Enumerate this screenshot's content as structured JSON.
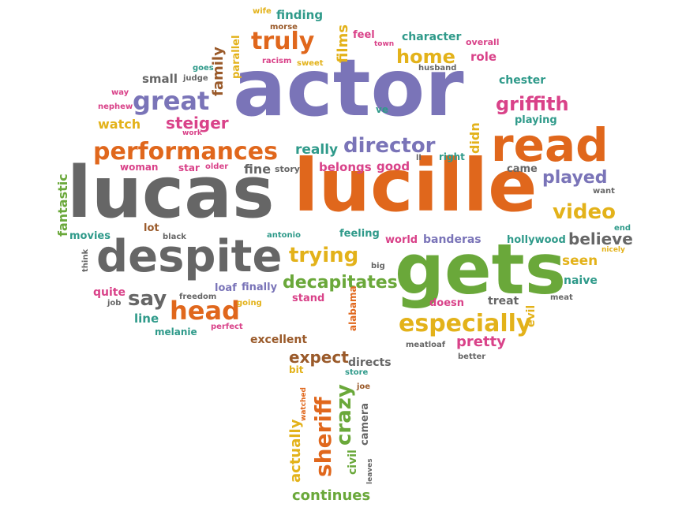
{
  "colors": {
    "purple": "#7a74b8",
    "gray": "#666666",
    "orange": "#e0671c",
    "yellow": "#e3b21a",
    "green": "#6aa83a",
    "pink": "#d94289",
    "teal": "#2f9a8a",
    "brown": "#9a5a2a"
  },
  "words": [
    {
      "text": "actor",
      "color": "purple"
    },
    {
      "text": "lucille",
      "color": "orange"
    },
    {
      "text": "lucas",
      "color": "gray"
    },
    {
      "text": "gets",
      "color": "green"
    },
    {
      "text": "despite",
      "color": "gray"
    },
    {
      "text": "read",
      "color": "orange"
    },
    {
      "text": "performances",
      "color": "orange"
    },
    {
      "text": "especially",
      "color": "yellow"
    },
    {
      "text": "great",
      "color": "purple"
    },
    {
      "text": "director",
      "color": "purple"
    },
    {
      "text": "trying",
      "color": "yellow"
    },
    {
      "text": "head",
      "color": "orange"
    },
    {
      "text": "truly",
      "color": "orange"
    },
    {
      "text": "home",
      "color": "yellow"
    },
    {
      "text": "video",
      "color": "yellow"
    },
    {
      "text": "griffith",
      "color": "pink"
    },
    {
      "text": "decapitates",
      "color": "green"
    },
    {
      "text": "steiger",
      "color": "pink"
    },
    {
      "text": "say",
      "color": "gray"
    },
    {
      "text": "sheriff",
      "color": "orange"
    },
    {
      "text": "crazy",
      "color": "green"
    },
    {
      "text": "played",
      "color": "purple"
    },
    {
      "text": "believe",
      "color": "gray"
    },
    {
      "text": "continues",
      "color": "green"
    },
    {
      "text": "expect",
      "color": "brown"
    },
    {
      "text": "pretty",
      "color": "pink"
    },
    {
      "text": "actually",
      "color": "yellow"
    },
    {
      "text": "really",
      "color": "teal"
    },
    {
      "text": "seen",
      "color": "yellow"
    },
    {
      "text": "films",
      "color": "yellow"
    },
    {
      "text": "family",
      "color": "brown"
    },
    {
      "text": "fantastic",
      "color": "green"
    },
    {
      "text": "watch",
      "color": "yellow"
    },
    {
      "text": "character",
      "color": "teal"
    },
    {
      "text": "role",
      "color": "pink"
    },
    {
      "text": "finding",
      "color": "teal"
    },
    {
      "text": "fine",
      "color": "gray"
    },
    {
      "text": "belongs",
      "color": "pink"
    },
    {
      "text": "good",
      "color": "pink"
    },
    {
      "text": "didn",
      "color": "yellow"
    },
    {
      "text": "came",
      "color": "gray"
    },
    {
      "text": "right",
      "color": "teal"
    },
    {
      "text": "excellent",
      "color": "brown"
    },
    {
      "text": "directs",
      "color": "gray"
    },
    {
      "text": "small",
      "color": "gray"
    },
    {
      "text": "naive",
      "color": "teal"
    },
    {
      "text": "playing",
      "color": "teal"
    },
    {
      "text": "chester",
      "color": "teal"
    },
    {
      "text": "treat",
      "color": "gray"
    },
    {
      "text": "evil",
      "color": "yellow"
    },
    {
      "text": "line",
      "color": "teal"
    },
    {
      "text": "quite",
      "color": "pink"
    },
    {
      "text": "movies",
      "color": "teal"
    },
    {
      "text": "lot",
      "color": "brown"
    },
    {
      "text": "feeling",
      "color": "teal"
    },
    {
      "text": "world",
      "color": "pink"
    },
    {
      "text": "banderas",
      "color": "purple"
    },
    {
      "text": "hollywood",
      "color": "teal"
    },
    {
      "text": "woman",
      "color": "pink"
    },
    {
      "text": "star",
      "color": "pink"
    },
    {
      "text": "older",
      "color": "pink"
    },
    {
      "text": "story",
      "color": "gray"
    },
    {
      "text": "stand",
      "color": "pink"
    },
    {
      "text": "finally",
      "color": "purple"
    },
    {
      "text": "loaf",
      "color": "purple"
    },
    {
      "text": "civil",
      "color": "green"
    },
    {
      "text": "camera",
      "color": "gray"
    },
    {
      "text": "parallel",
      "color": "yellow"
    },
    {
      "text": "feel",
      "color": "pink"
    },
    {
      "text": "melanie",
      "color": "teal"
    },
    {
      "text": "doesn",
      "color": "pink"
    },
    {
      "text": "bit",
      "color": "yellow"
    },
    {
      "text": "alabama",
      "color": "orange"
    },
    {
      "text": "wife",
      "color": "yellow"
    },
    {
      "text": "morse",
      "color": "brown"
    },
    {
      "text": "racism",
      "color": "pink"
    },
    {
      "text": "sweet",
      "color": "yellow"
    },
    {
      "text": "town",
      "color": "pink"
    },
    {
      "text": "overall",
      "color": "pink"
    },
    {
      "text": "husband",
      "color": "gray"
    },
    {
      "text": "goes",
      "color": "teal"
    },
    {
      "text": "judge",
      "color": "gray"
    },
    {
      "text": "way",
      "color": "pink"
    },
    {
      "text": "nephew",
      "color": "pink"
    },
    {
      "text": "work",
      "color": "pink"
    },
    {
      "text": "ve",
      "color": "teal"
    },
    {
      "text": "ll",
      "color": "gray"
    },
    {
      "text": "want",
      "color": "gray"
    },
    {
      "text": "end",
      "color": "teal"
    },
    {
      "text": "nicely",
      "color": "yellow"
    },
    {
      "text": "antonio",
      "color": "teal"
    },
    {
      "text": "black",
      "color": "gray"
    },
    {
      "text": "think",
      "color": "gray"
    },
    {
      "text": "freedom",
      "color": "gray"
    },
    {
      "text": "job",
      "color": "gray"
    },
    {
      "text": "going",
      "color": "yellow"
    },
    {
      "text": "perfect",
      "color": "pink"
    },
    {
      "text": "big",
      "color": "gray"
    },
    {
      "text": "meat",
      "color": "gray"
    },
    {
      "text": "meatloaf",
      "color": "gray"
    },
    {
      "text": "better",
      "color": "gray"
    },
    {
      "text": "store",
      "color": "teal"
    },
    {
      "text": "joe",
      "color": "brown"
    },
    {
      "text": "watched",
      "color": "orange"
    },
    {
      "text": "leaves",
      "color": "gray"
    }
  ]
}
